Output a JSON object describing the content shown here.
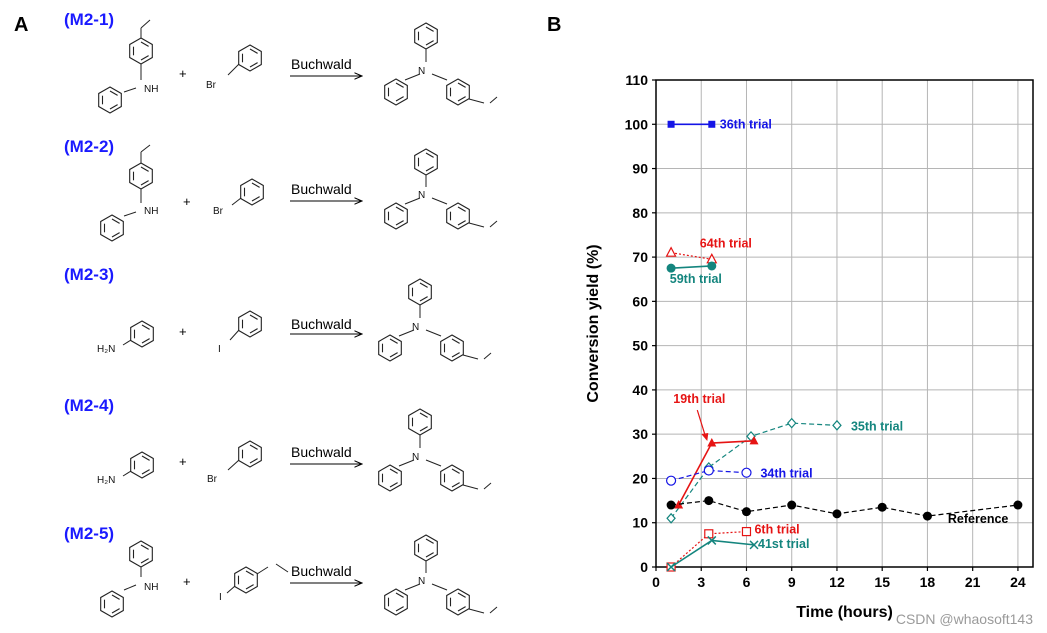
{
  "panelA": {
    "letter": "A",
    "arrow_label": "Buchwald",
    "plus": "+",
    "reactions": [
      {
        "id": "(M2-1)"
      },
      {
        "id": "(M2-2)"
      },
      {
        "id": "(M2-3)"
      },
      {
        "id": "(M2-4)"
      },
      {
        "id": "(M2-5)"
      }
    ],
    "atoms": {
      "N": "N",
      "NH": "NH",
      "H2N": "H₂N",
      "Br": "Br",
      "I": "I"
    }
  },
  "panelB": {
    "letter": "B"
  },
  "colors": {
    "blue": "#1414e6",
    "red": "#e61414",
    "teal": "#14857e",
    "black": "#000000"
  },
  "chart_data": {
    "type": "line",
    "xlabel": "Time (hours)",
    "ylabel": "Conversion yield (%)",
    "xlim": [
      0,
      25
    ],
    "ylim": [
      0,
      110
    ],
    "xticks": [
      0,
      3,
      6,
      9,
      12,
      15,
      18,
      21,
      24
    ],
    "yticks": [
      0,
      10,
      20,
      30,
      40,
      50,
      60,
      70,
      80,
      90,
      100,
      110
    ],
    "grid": true,
    "series": [
      {
        "name": "36th trial",
        "color": "#1414e6",
        "marker": "square-filled",
        "dash": "solid",
        "x": [
          1,
          3.7
        ],
        "y": [
          100,
          100
        ]
      },
      {
        "name": "64th trial",
        "color": "#e61414",
        "marker": "triangle-open",
        "dash": "dotted",
        "x": [
          1,
          3.7
        ],
        "y": [
          71,
          69.5
        ]
      },
      {
        "name": "59th trial",
        "color": "#14857e",
        "marker": "circle-filled",
        "dash": "solid",
        "x": [
          1,
          3.7
        ],
        "y": [
          67.5,
          68
        ]
      },
      {
        "name": "35th trial",
        "color": "#14857e",
        "marker": "diamond-open",
        "dash": "dashed",
        "x": [
          1,
          3.5,
          6.3,
          9,
          12
        ],
        "y": [
          11,
          22.5,
          29.5,
          32.5,
          32
        ]
      },
      {
        "name": "19th trial",
        "color": "#e61414",
        "marker": "triangle-filled",
        "dash": "solid",
        "x": [
          1.5,
          3.7,
          6.5
        ],
        "y": [
          14,
          28,
          28.5
        ]
      },
      {
        "name": "34th trial",
        "color": "#1414e6",
        "marker": "circle-open",
        "dash": "dashed",
        "x": [
          1,
          3.5,
          6
        ],
        "y": [
          19.5,
          21.8,
          21.3
        ]
      },
      {
        "name": "Reference",
        "color": "#000000",
        "marker": "circle-filled",
        "dash": "dashed",
        "x": [
          1,
          3.5,
          6,
          9,
          12,
          15,
          18,
          24
        ],
        "y": [
          14,
          15,
          12.5,
          14,
          12,
          13.5,
          11.5,
          14
        ]
      },
      {
        "name": "6th trial",
        "color": "#e61414",
        "marker": "square-open",
        "dash": "dotted",
        "x": [
          1,
          3.5,
          6
        ],
        "y": [
          0,
          7.5,
          8
        ]
      },
      {
        "name": "41st trial",
        "color": "#14857e",
        "marker": "x",
        "dash": "solid",
        "x": [
          1,
          3.7,
          6.5
        ],
        "y": [
          0,
          6,
          5
        ]
      }
    ],
    "annotations": [
      {
        "text": "19th trial",
        "color": "#e61414",
        "points_to_x": 3.4,
        "points_to_y": 28
      }
    ]
  },
  "watermark": "CSDN @whaosoft143"
}
